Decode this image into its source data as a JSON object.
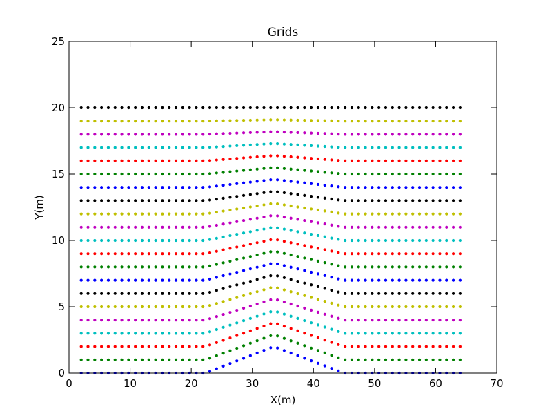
{
  "chart_data": {
    "type": "scatter",
    "title": "Grids",
    "xlabel": "X(m)",
    "ylabel": "Y(m)",
    "xlim": [
      0,
      70
    ],
    "ylim": [
      0,
      25
    ],
    "xticks": [
      "0",
      "10",
      "20",
      "30",
      "40",
      "50",
      "60",
      "70"
    ],
    "yticks": [
      "0",
      "5",
      "10",
      "15",
      "20",
      "25"
    ],
    "grid": false,
    "legend": "none",
    "x_range": [
      2,
      64
    ],
    "points_per_row": 57,
    "bump": {
      "ridge_x": 33.5,
      "left_toe_x": 22.3,
      "right_toe_x": 45,
      "crest_height": 2,
      "decay_top_y": 20
    },
    "row_baselines": [
      0,
      1,
      2,
      3,
      4,
      5,
      6,
      7,
      8,
      9,
      10,
      11,
      12,
      13,
      14,
      15,
      16,
      17,
      18,
      19,
      20
    ],
    "color_cycle": [
      "#0000ff",
      "#008000",
      "#ff0000",
      "#00bfbf",
      "#bf00bf",
      "#bfbf00",
      "#000000"
    ]
  }
}
